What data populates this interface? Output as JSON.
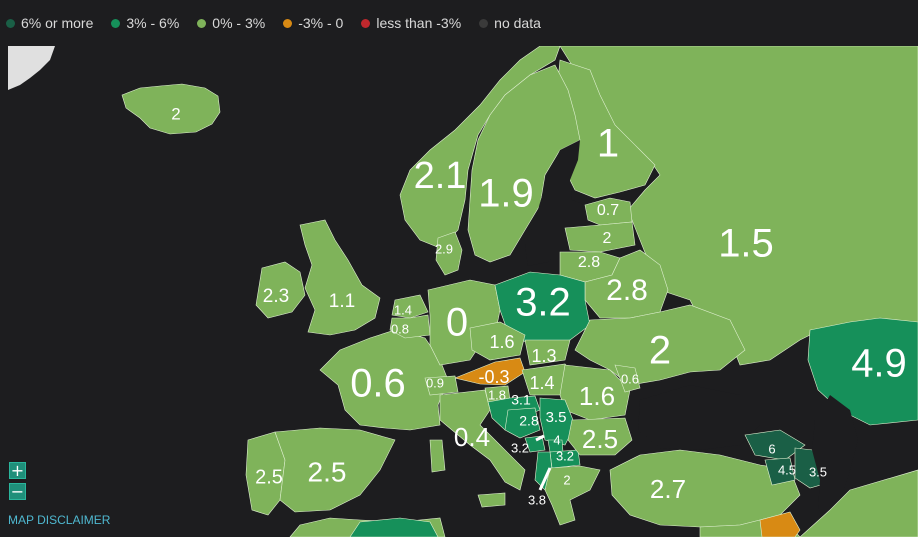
{
  "legend": [
    {
      "label": "6% or more",
      "color": "#1a5f46"
    },
    {
      "label": "3% - 6%",
      "color": "#16905a"
    },
    {
      "label": "0% - 3%",
      "color": "#7fb35a"
    },
    {
      "label": "-3% - 0",
      "color": "#d88a14"
    },
    {
      "label": "less than -3%",
      "color": "#c0282d"
    },
    {
      "label": "no data",
      "color": "#3a3a3a"
    }
  ],
  "colors": {
    "ocean": "#1d1d1f",
    "light_green": "#7fb35a",
    "mid_green": "#16905a",
    "dark_green": "#1a5f46",
    "orange": "#d88a14",
    "no_data": "#e0e0e0",
    "border": "#dff0d0"
  },
  "region_values": {
    "iceland": "2",
    "norway": "2.1",
    "sweden": "1.9",
    "finland": "1",
    "estonia": "0.7",
    "latvia": "2",
    "lithuania": "2.8",
    "denmark": "2.9",
    "ireland": "2.3",
    "united_kingdom": "1.1",
    "netherlands": "1.4",
    "belgium": "0.8",
    "germany": "0",
    "poland": "3.2",
    "belarus": "2.8",
    "russia": "1.5",
    "czechia": "1.6",
    "slovakia": "1.3",
    "ukraine": "2",
    "austria": "-0.3",
    "hungary": "1.4",
    "switzerland": "0.9",
    "france": "0.6",
    "slovenia": "1.8",
    "croatia": "3.1",
    "romania": "1.6",
    "moldova": "0.6",
    "kazakhstan": "4.9",
    "bosnia": "2.8",
    "serbia": "3.5",
    "italy": "0.4",
    "montenegro": "3.2",
    "kosovo": "4",
    "bulgaria": "2.5",
    "north_macedonia": "3.2",
    "albania": "3.8",
    "greece": "2",
    "georgia": "6",
    "armenia": "4.5",
    "azerbaijan": "3.5",
    "turkey": "2.7",
    "portugal": "2.5",
    "spain": "2.5"
  },
  "controls": {
    "zoom_in": "+",
    "zoom_out": "−",
    "disclaimer": "MAP DISCLAIMER"
  }
}
